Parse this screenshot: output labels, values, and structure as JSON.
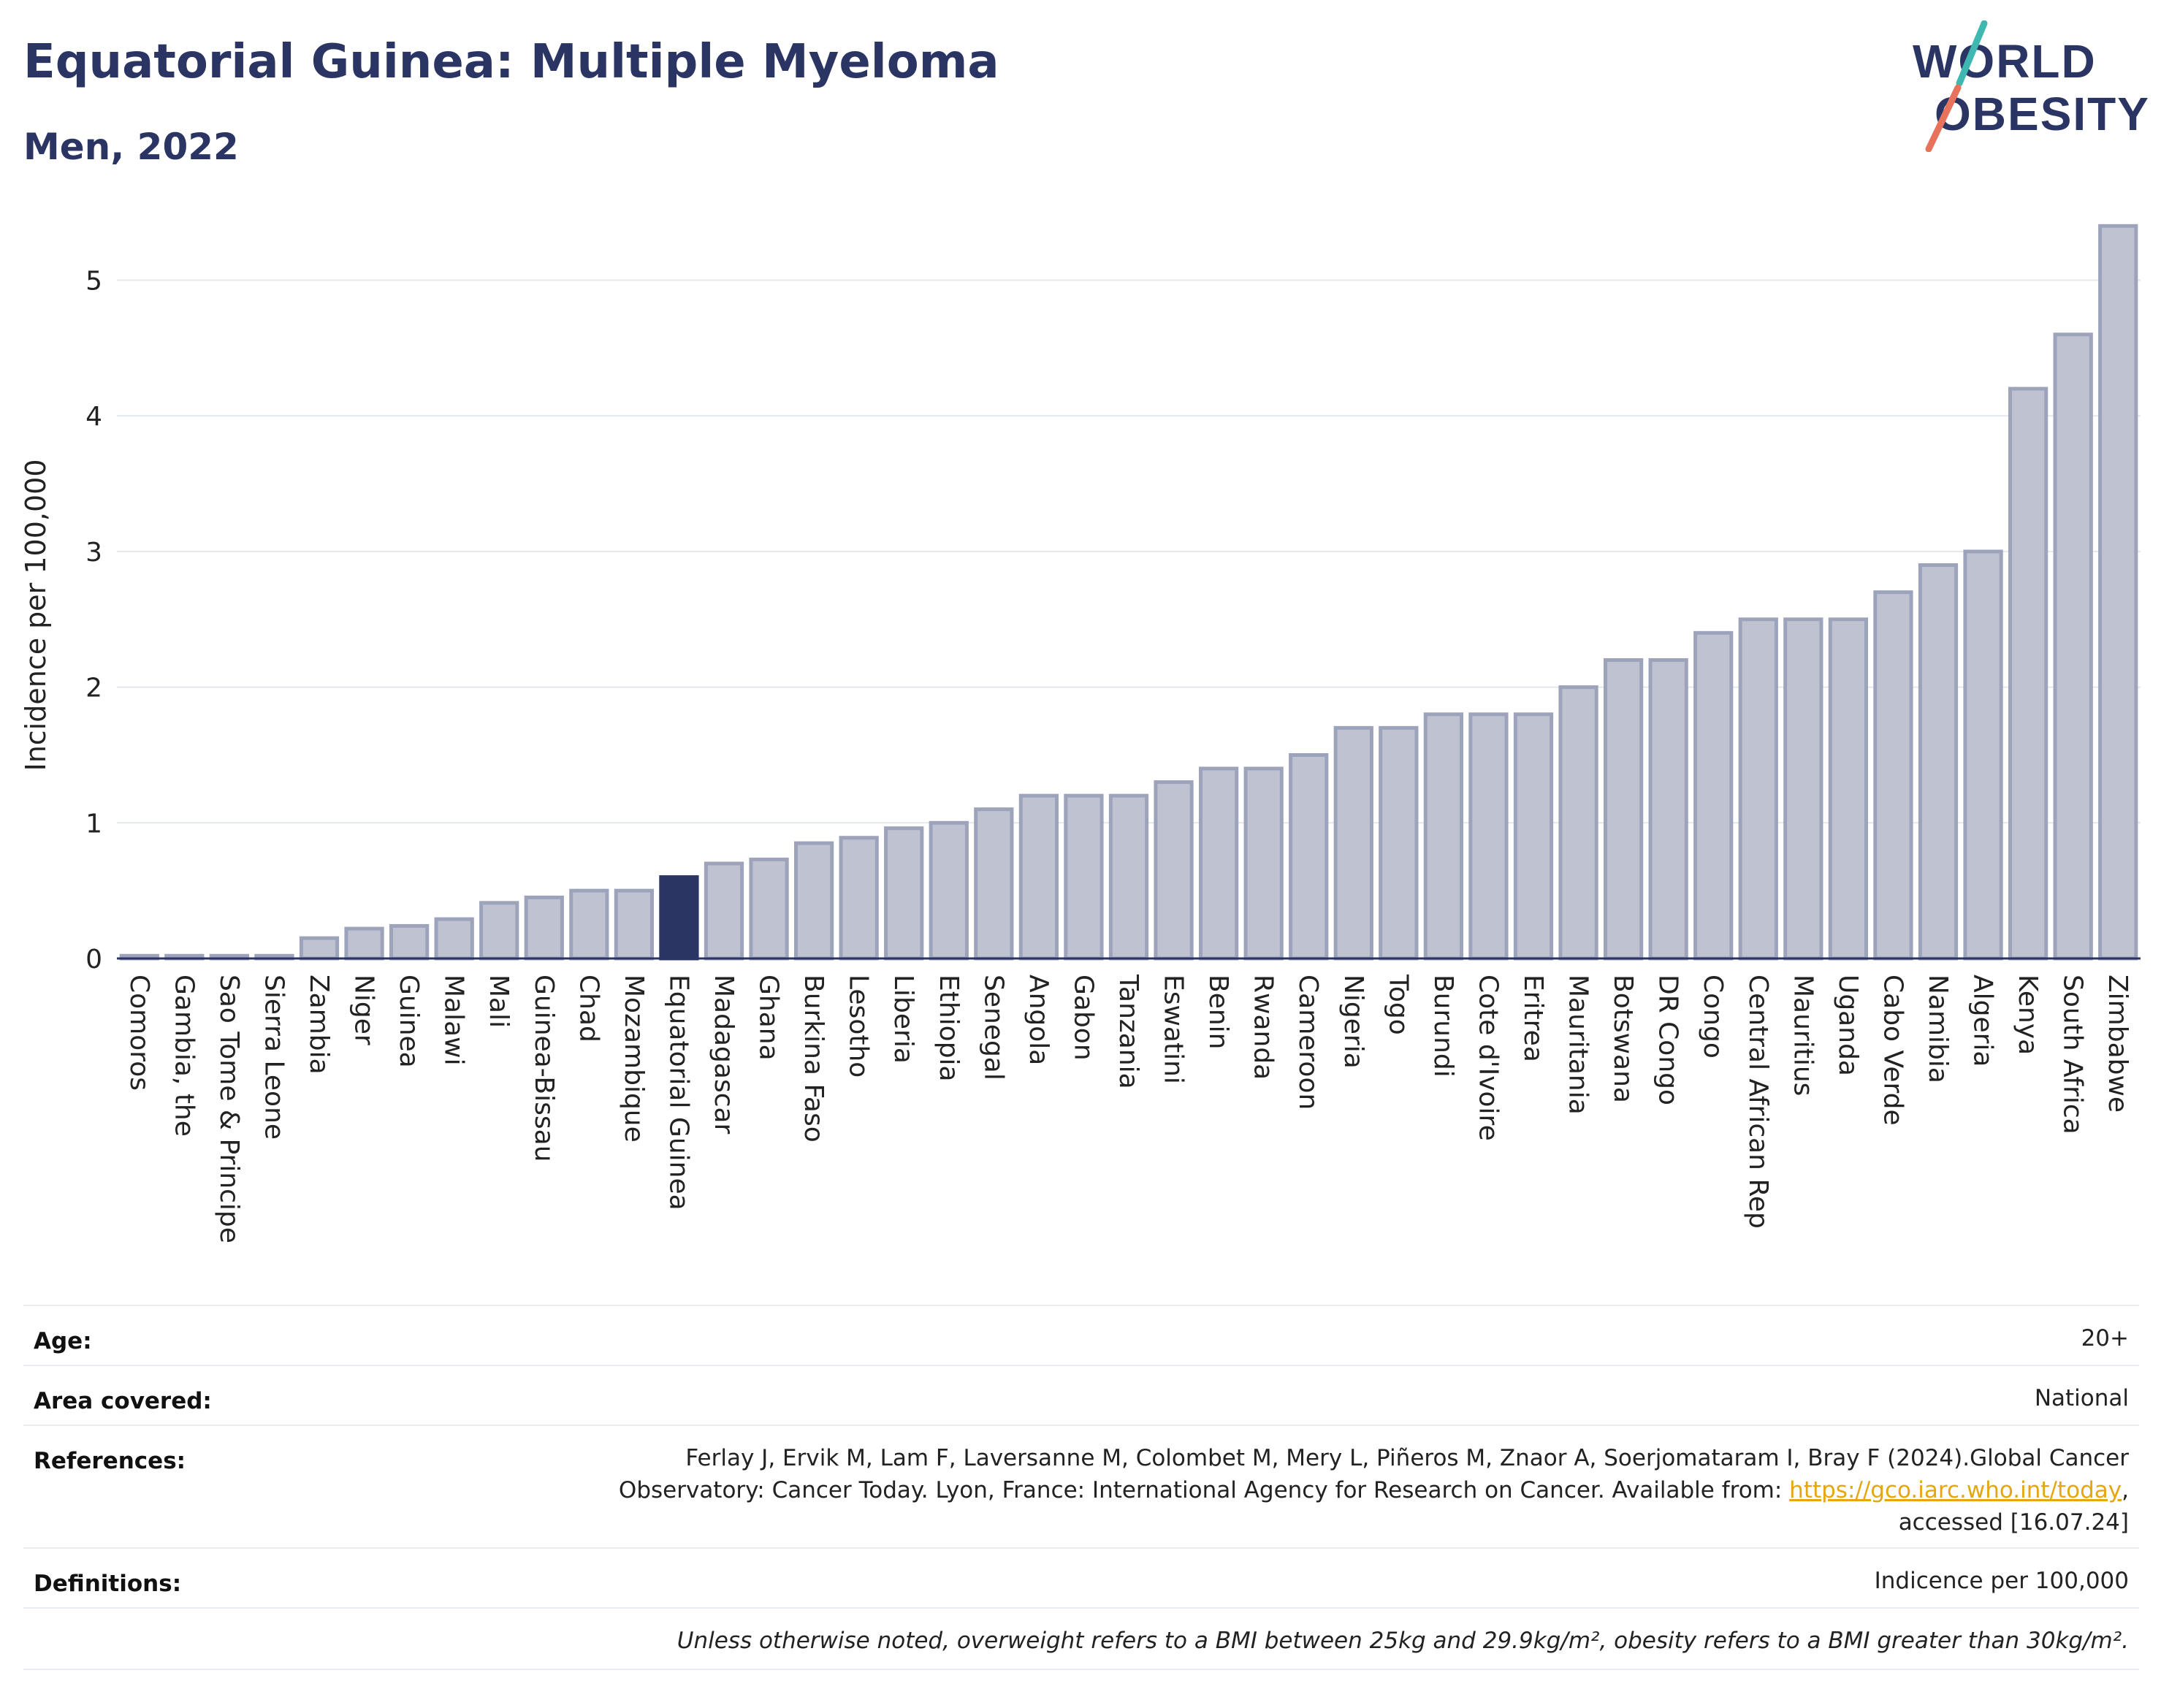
{
  "header": {
    "title": "Equatorial Guinea: Multiple Myeloma",
    "subtitle": "Men, 2022"
  },
  "logo": {
    "line1": "WORLD",
    "line2": "OBESITY",
    "accent_teal": "#3fb8b2",
    "accent_coral": "#e8735d"
  },
  "colors": {
    "bar": "#bfc3d1",
    "bar_stroke": "#9da3ba",
    "highlight": "#2b3564",
    "axis": "#2b3564",
    "grid": "#e4e7ee"
  },
  "chart_data": {
    "type": "bar",
    "title": "Equatorial Guinea: Multiple Myeloma",
    "subtitle": "Men, 2022",
    "xlabel": "",
    "ylabel": "Incidence per 100,000",
    "ylim": [
      0,
      5.45
    ],
    "yticks": [
      0,
      1,
      2,
      3,
      4,
      5
    ],
    "grid": true,
    "highlight": "Equatorial Guinea",
    "categories": [
      "Comoros",
      "Gambia, the",
      "Sao Tome & Principe",
      "Sierra Leone",
      "Zambia",
      "Niger",
      "Guinea",
      "Malawi",
      "Mali",
      "Guinea-Bissau",
      "Chad",
      "Mozambique",
      "Equatorial Guinea",
      "Madagascar",
      "Ghana",
      "Burkina Faso",
      "Lesotho",
      "Liberia",
      "Ethiopia",
      "Senegal",
      "Angola",
      "Gabon",
      "Tanzania",
      "Eswatini",
      "Benin",
      "Rwanda",
      "Cameroon",
      "Nigeria",
      "Togo",
      "Burundi",
      "Cote d'Ivoire",
      "Eritrea",
      "Mauritania",
      "Botswana",
      "DR Congo",
      "Congo",
      "Central African Rep",
      "Mauritius",
      "Uganda",
      "Cabo Verde",
      "Namibia",
      "Algeria",
      "Kenya",
      "South Africa",
      "Zimbabwe"
    ],
    "values": [
      0.02,
      0.02,
      0.02,
      0.02,
      0.15,
      0.22,
      0.24,
      0.29,
      0.41,
      0.45,
      0.5,
      0.5,
      0.6,
      0.7,
      0.73,
      0.85,
      0.89,
      0.96,
      1.0,
      1.1,
      1.2,
      1.2,
      1.2,
      1.3,
      1.4,
      1.4,
      1.5,
      1.7,
      1.7,
      1.8,
      1.8,
      1.8,
      2.0,
      2.2,
      2.2,
      2.4,
      2.5,
      2.5,
      2.5,
      2.7,
      2.9,
      3.0,
      4.2,
      4.6,
      5.4
    ]
  },
  "info": {
    "age_label": "Age:",
    "age_value": "20+",
    "area_label": "Area covered:",
    "area_value": "National",
    "references_label": "References:",
    "references_line1": "Ferlay J, Ervik M, Lam F, Laversanne M, Colombet M, Mery L, Piñeros M, Znaor A, Soerjomataram I, Bray F (2024).Global Cancer",
    "references_line2_prefix": "Observatory: Cancer Today. Lyon, France: International Agency for Research on Cancer. Available from: ",
    "references_link": "https://gco.iarc.who.int/today",
    "references_line2_suffix": ",",
    "references_line3": "accessed [16.07.24]",
    "definitions_label": "Definitions:",
    "definitions_value": "Indicence per 100,000",
    "note": "Unless otherwise noted, overweight refers to a BMI between 25kg and 29.9kg/m², obesity refers to a BMI greater than 30kg/m²."
  }
}
